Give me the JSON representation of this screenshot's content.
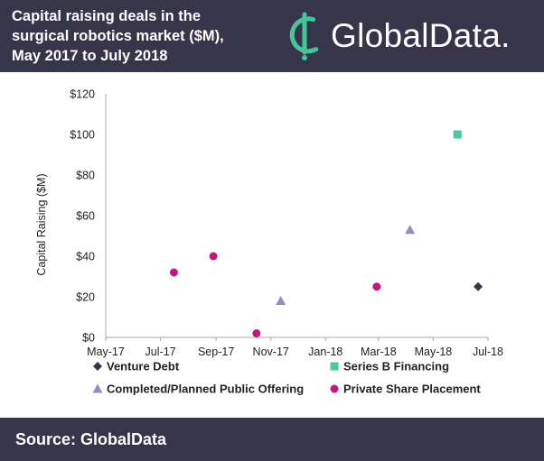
{
  "header": {
    "title_lines": [
      "Capital raising deals in the",
      "surgical robotics market ($M),",
      "May 2017 to July 2018"
    ],
    "logo_text": "GlobalData."
  },
  "footer": {
    "source": "Source: GlobalData"
  },
  "colors": {
    "header_bg": "#36354a",
    "logo_green": "#45c69a",
    "venture_debt": "#36354a",
    "series_b": "#48c99a",
    "public_offering": "#9b86c6",
    "private_placement": "#c2187e",
    "axis": "#aaaaaa"
  },
  "chart_data": {
    "type": "scatter",
    "title": "Capital raising deals in the surgical robotics market ($M), May 2017 to July 2018",
    "xlabel": "",
    "ylabel": "Capital Raising ($M)",
    "x_ticks": [
      "May-17",
      "Jul-17",
      "Sep-17",
      "Nov-17",
      "Jan-18",
      "Mar-18",
      "May-18",
      "Jul-18"
    ],
    "xlim": [
      "2017-05-01",
      "2018-07-01"
    ],
    "ylim": [
      0,
      120
    ],
    "y_ticks": [
      0,
      20,
      40,
      60,
      80,
      100,
      120
    ],
    "y_tick_labels": [
      "$0",
      "$20",
      "$40",
      "$60",
      "$80",
      "$100",
      "$120"
    ],
    "grid": false,
    "legend_position": "bottom",
    "series": [
      {
        "name": "Venture Debt",
        "marker": "diamond",
        "color": "#36354a",
        "points": [
          {
            "x": "2018-06-20",
            "y": 25
          }
        ]
      },
      {
        "name": "Series B Financing",
        "marker": "square",
        "color": "#48c99a",
        "points": [
          {
            "x": "2018-05-28",
            "y": 100
          }
        ]
      },
      {
        "name": "Completed/Planned Public Offering",
        "marker": "triangle",
        "color": "#9b86c6",
        "points": [
          {
            "x": "2017-11-12",
            "y": 18
          },
          {
            "x": "2018-04-05",
            "y": 53
          }
        ]
      },
      {
        "name": "Private Share Placement",
        "marker": "circle",
        "color": "#c2187e",
        "points": [
          {
            "x": "2017-07-16",
            "y": 32
          },
          {
            "x": "2017-08-29",
            "y": 40
          },
          {
            "x": "2017-10-16",
            "y": 2
          },
          {
            "x": "2018-02-27",
            "y": 25
          }
        ]
      }
    ]
  }
}
